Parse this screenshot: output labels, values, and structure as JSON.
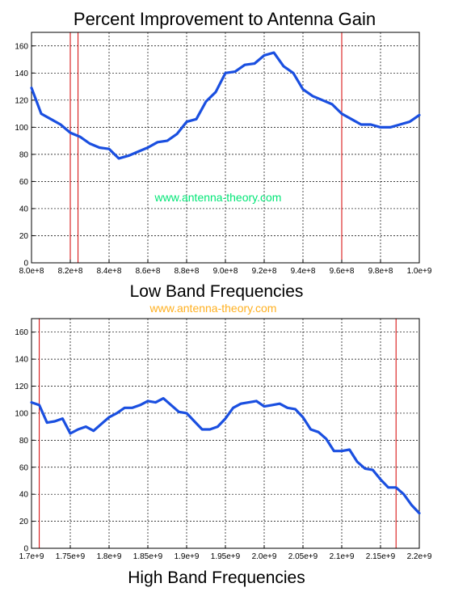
{
  "figure_title": "Percent Improvement to Antenna Gain",
  "watermarks": {
    "low": "www.antenna-theory.com",
    "high": "www.antenna-theory.com"
  },
  "colors": {
    "series": "#1a4fe0",
    "marker_lines": "#d40000",
    "grid": "#000000",
    "wm_low": "#00e676",
    "wm_high": "#ffb020"
  },
  "chart_data": [
    {
      "type": "line",
      "title": "",
      "xlabel": "Low Band Frequencies",
      "ylabel": "",
      "xlim": [
        800000000,
        1000000000
      ],
      "ylim": [
        0,
        170
      ],
      "xticks": [
        800000000,
        820000000,
        840000000,
        860000000,
        880000000,
        900000000,
        920000000,
        940000000,
        960000000,
        980000000,
        1000000000
      ],
      "xtick_labels": [
        "8.0e+8",
        "8.2e+8",
        "8.4e+8",
        "8.6e+8",
        "8.8e+8",
        "9.0e+8",
        "9.2e+8",
        "9.4e+8",
        "9.6e+8",
        "9.8e+8",
        "1.0e+9"
      ],
      "yticks": [
        0,
        20,
        40,
        60,
        80,
        100,
        120,
        140,
        160
      ],
      "ytick_labels": [
        "0",
        "20",
        "40",
        "60",
        "80",
        "100",
        "120",
        "140",
        "160"
      ],
      "grid": true,
      "marker_lines_x": [
        820000000,
        824000000,
        960000000
      ],
      "series": [
        {
          "x": [
            800000000,
            805000000,
            810000000,
            815000000,
            820000000,
            825000000,
            830000000,
            835000000,
            840000000,
            845000000,
            850000000,
            855000000,
            860000000,
            865000000,
            870000000,
            875000000,
            880000000,
            885000000,
            890000000,
            895000000,
            900000000,
            905000000,
            910000000,
            915000000,
            920000000,
            925000000,
            930000000,
            935000000,
            940000000,
            945000000,
            950000000,
            955000000,
            960000000,
            965000000,
            970000000,
            975000000,
            980000000,
            985000000,
            990000000,
            995000000,
            1000000000
          ],
          "y": [
            129,
            110,
            106,
            102,
            96,
            93,
            88,
            85,
            84,
            77,
            79,
            82,
            85,
            89,
            90,
            95,
            104,
            106,
            119,
            126,
            140,
            141,
            146,
            147,
            153,
            155,
            145,
            140,
            128,
            123,
            120,
            117,
            110,
            106,
            102,
            102,
            100,
            100,
            102,
            104,
            109
          ]
        }
      ]
    },
    {
      "type": "line",
      "title": "",
      "xlabel": "High Band Frequencies",
      "ylabel": "",
      "xlim": [
        1700000000,
        2200000000
      ],
      "ylim": [
        0,
        170
      ],
      "xticks": [
        1700000000,
        1750000000,
        1800000000,
        1850000000,
        1900000000,
        1950000000,
        2000000000,
        2050000000,
        2100000000,
        2150000000,
        2200000000
      ],
      "xtick_labels": [
        "1.7e+9",
        "1.75e+9",
        "1.8e+9",
        "1.85e+9",
        "1.9e+9",
        "1.95e+9",
        "2.0e+9",
        "2.05e+9",
        "2.1e+9",
        "2.15e+9",
        "2.2e+9"
      ],
      "yticks": [
        0,
        20,
        40,
        60,
        80,
        100,
        120,
        140,
        160
      ],
      "ytick_labels": [
        "0",
        "20",
        "40",
        "60",
        "80",
        "100",
        "120",
        "140",
        "160"
      ],
      "grid": true,
      "marker_lines_x": [
        1710000000,
        2170000000
      ],
      "series": [
        {
          "x": [
            1700000000,
            1710000000,
            1720000000,
            1730000000,
            1740000000,
            1750000000,
            1760000000,
            1770000000,
            1780000000,
            1790000000,
            1800000000,
            1810000000,
            1820000000,
            1830000000,
            1840000000,
            1850000000,
            1860000000,
            1870000000,
            1880000000,
            1890000000,
            1900000000,
            1910000000,
            1920000000,
            1930000000,
            1940000000,
            1950000000,
            1960000000,
            1970000000,
            1980000000,
            1990000000,
            2000000000,
            2010000000,
            2020000000,
            2030000000,
            2040000000,
            2050000000,
            2060000000,
            2070000000,
            2080000000,
            2090000000,
            2100000000,
            2110000000,
            2120000000,
            2130000000,
            2140000000,
            2150000000,
            2160000000,
            2170000000,
            2180000000,
            2190000000,
            2200000000
          ],
          "y": [
            108,
            106,
            93,
            94,
            96,
            85,
            88,
            90,
            87,
            92,
            97,
            100,
            104,
            104,
            106,
            109,
            108,
            111,
            106,
            101,
            100,
            94,
            88,
            88,
            90,
            96,
            104,
            107,
            108,
            109,
            105,
            106,
            107,
            104,
            103,
            97,
            88,
            86,
            81,
            72,
            72,
            73,
            64,
            59,
            58,
            51,
            45,
            45,
            40,
            32,
            26
          ]
        }
      ]
    }
  ]
}
